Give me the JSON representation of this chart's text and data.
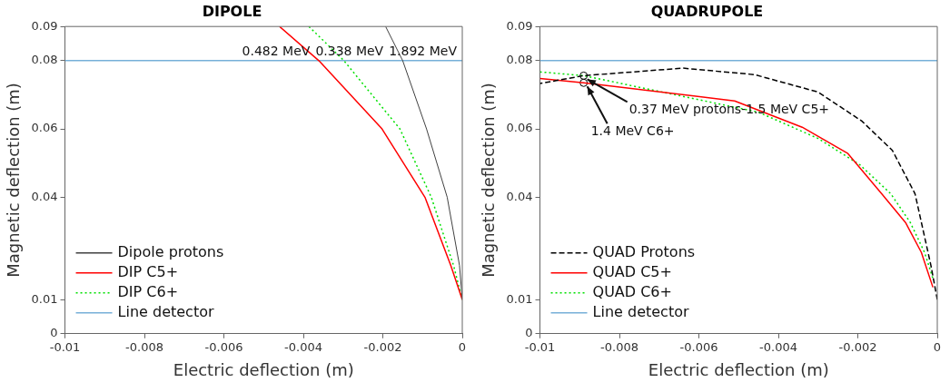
{
  "chart_data": [
    {
      "type": "line",
      "title": "DIPOLE",
      "xlabel": "Electric deflection (m)",
      "ylabel": "Magnetic deflection (m)",
      "xlim": [
        -0.01,
        0
      ],
      "xticks": [
        -0.01,
        -0.008,
        -0.006,
        -0.004,
        -0.002,
        0
      ],
      "ylim": [
        0,
        0.09
      ],
      "yticks": [
        0,
        0.01,
        0.04,
        0.06,
        0.08,
        0.09
      ],
      "grid": false,
      "legend": "bottom left",
      "marker": "none",
      "annotations": [
        "0.482 MeV",
        "0.338 MeV",
        "1.892 MeV"
      ],
      "series": [
        {
          "name": "Dipole protons",
          "color": "#404040",
          "line_style": "solid",
          "x": [
            -0.00193,
            -0.0015,
            -0.0009,
            -0.00038,
            -7e-05,
            0
          ],
          "values": [
            0.09,
            0.08,
            0.06,
            0.04,
            0.02,
            0.01
          ]
        },
        {
          "name": "DIP C5+",
          "color": "#ff0000",
          "line_style": "solid",
          "x": [
            -0.0046,
            -0.00361,
            -0.00202,
            -0.00094,
            -0.00029,
            0
          ],
          "values": [
            0.09,
            0.08,
            0.06,
            0.04,
            0.02,
            0.01
          ]
        },
        {
          "name": "DIP C6+",
          "color": "#00e000",
          "line_style": "dotted",
          "x": [
            -0.00386,
            -0.00298,
            -0.00157,
            -0.00078,
            -0.00022,
            0
          ],
          "values": [
            0.09,
            0.08,
            0.06,
            0.04,
            0.02,
            0.01
          ]
        },
        {
          "name": "Line detector",
          "color": "#77b0d8",
          "line_style": "solid",
          "x": [
            -0.01,
            0
          ],
          "values": [
            0.08,
            0.08
          ]
        }
      ]
    },
    {
      "type": "line",
      "title": "QUADRUPOLE",
      "xlabel": "Electric deflection (m)",
      "ylabel": "Magnetic deflection (m)",
      "xlim": [
        -0.01,
        0
      ],
      "xticks": [
        -0.01,
        -0.008,
        -0.006,
        -0.004,
        -0.002,
        0
      ],
      "ylim": [
        0,
        0.09
      ],
      "yticks": [
        0,
        0.01,
        0.04,
        0.06,
        0.08,
        0.09
      ],
      "grid": false,
      "legend": "bottom left",
      "marker": "none",
      "annotations": [
        {
          "text": "0.37 MeV protons-1.5 MeV C5+",
          "x": -0.0089,
          "y": 0.0756
        },
        {
          "text": "1.4 MeV C6+",
          "x": -0.0089,
          "y": 0.0735
        }
      ],
      "series": [
        {
          "name": "QUAD Protons",
          "color": "#000000",
          "line_style": "dashed",
          "x": [
            -0.01,
            -0.0089,
            -0.0064,
            -0.0046,
            -0.003,
            -0.0019,
            -0.00113,
            -0.00056,
            -0.00016,
            0
          ],
          "values": [
            0.0733,
            0.0756,
            0.0778,
            0.0759,
            0.0708,
            0.0623,
            0.0537,
            0.041,
            0.02,
            0.01
          ]
        },
        {
          "name": "QUAD C5+",
          "color": "#ff0000",
          "line_style": "solid",
          "x": [
            -0.01,
            -0.0089,
            -0.0051,
            -0.0034,
            -0.00225,
            -0.0014,
            -0.0008,
            -0.0004,
            -0.00011
          ],
          "values": [
            0.0748,
            0.0735,
            0.0682,
            0.0605,
            0.0528,
            0.041,
            0.0326,
            0.0238,
            0.0136
          ]
        },
        {
          "name": "QUAD C6+",
          "color": "#00e000",
          "line_style": "dotted",
          "x": [
            -0.01,
            -0.0089,
            -0.0045,
            -0.003,
            -0.00195,
            -0.00117,
            -0.00068,
            -0.00032,
            -0.00011
          ],
          "values": [
            0.0767,
            0.0756,
            0.0649,
            0.0572,
            0.0495,
            0.041,
            0.0326,
            0.0238,
            0.0162
          ]
        },
        {
          "name": "Line detector",
          "color": "#77b0d8",
          "line_style": "solid",
          "x": [
            -0.01,
            0
          ],
          "values": [
            0.08,
            0.08
          ]
        },
        {
          "type": "scatter",
          "color": "#000000",
          "marker": "circle",
          "x": [
            -0.0089,
            -0.0089
          ],
          "values": [
            0.0756,
            0.0735
          ]
        }
      ]
    }
  ]
}
